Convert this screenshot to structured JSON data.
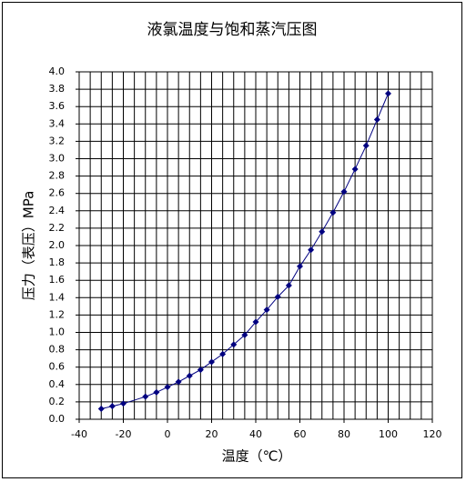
{
  "chart_data": {
    "type": "line",
    "title": "液氯温度与饱和蒸汽压图",
    "x_label": "温度（℃）",
    "y_label": "压力（表压）MPa",
    "x": [
      -30,
      -25,
      -20,
      -10,
      -5,
      0,
      5,
      10,
      15,
      20,
      25,
      30,
      35,
      40,
      45,
      50,
      55,
      60,
      65,
      70,
      75,
      80,
      85,
      90,
      95,
      100
    ],
    "series": [
      {
        "color": "#000080",
        "values": [
          0.12,
          0.15,
          0.18,
          0.26,
          0.31,
          0.37,
          0.43,
          0.5,
          0.57,
          0.66,
          0.75,
          0.86,
          0.97,
          1.12,
          1.26,
          1.41,
          1.54,
          1.76,
          1.95,
          2.16,
          2.38,
          2.62,
          2.88,
          3.15,
          3.45,
          3.75
        ]
      }
    ],
    "xlim": [
      -40,
      120
    ],
    "xticks": [
      -40,
      -20,
      0,
      20,
      40,
      60,
      80,
      100,
      120
    ],
    "x_minor_step": 5,
    "ylim": [
      0,
      4
    ],
    "yticks": [
      {
        "value": 0,
        "label": "0.0"
      },
      0.2,
      0.4,
      0.6,
      0.8,
      {
        "value": 1,
        "label": "1.0"
      },
      1.2,
      1.4,
      1.6,
      1.8,
      {
        "value": 2,
        "label": "2.0"
      },
      2.2,
      2.4,
      2.6,
      2.8,
      {
        "value": 3,
        "label": "3.0"
      },
      3.2,
      3.4,
      3.6,
      3.8,
      {
        "value": 4,
        "label": "4.0"
      }
    ],
    "grid": true
  }
}
